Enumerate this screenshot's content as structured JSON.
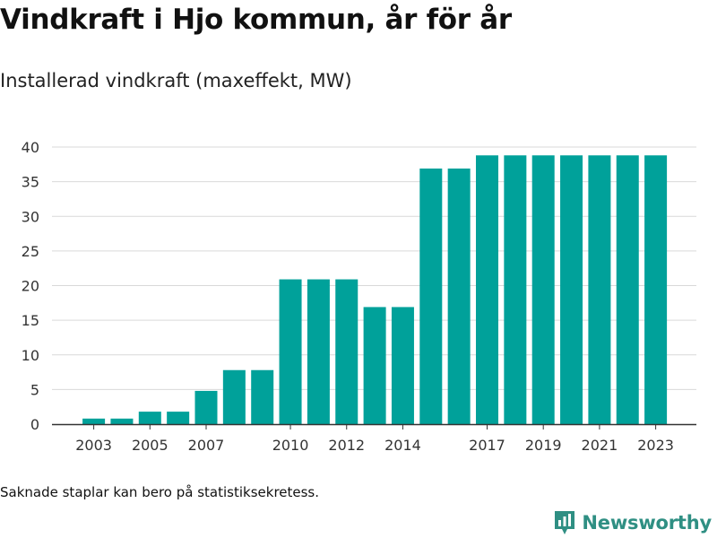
{
  "title": "Vindkraft i Hjo kommun, år för år",
  "subtitle": "Installerad vindkraft (maxeffekt, MW)",
  "note": "Saknade staplar kan bero på statistiksekretess.",
  "brand": {
    "name": "Newsworthy",
    "icon": "newsworthy-logo-icon",
    "color": "#2f8f83"
  },
  "colors": {
    "bar": "#00a19a",
    "grid": "#d9d9d9",
    "axis": "#333333"
  },
  "chart_data": {
    "type": "bar",
    "title": "Vindkraft i Hjo kommun, år för år",
    "subtitle": "Installerad vindkraft (maxeffekt, MW)",
    "xlabel": "",
    "ylabel": "",
    "categories": [
      "2003",
      "2004",
      "2005",
      "2006",
      "2007",
      "2008",
      "2009",
      "2010",
      "2011",
      "2012",
      "2013",
      "2014",
      "2015",
      "2016",
      "2017",
      "2018",
      "2019",
      "2020",
      "2021",
      "2022",
      "2023"
    ],
    "values": [
      0.8,
      0.8,
      1.8,
      1.8,
      4.8,
      7.8,
      7.8,
      20.9,
      20.9,
      20.9,
      16.9,
      16.9,
      36.9,
      36.9,
      38.8,
      38.8,
      38.8,
      38.8,
      38.8,
      38.8,
      38.8
    ],
    "x_tick_labels": [
      "2003",
      "2005",
      "2007",
      "2010",
      "2012",
      "2014",
      "2017",
      "2019",
      "2021",
      "2023"
    ],
    "ylim": [
      0,
      40
    ],
    "y_ticks": [
      0,
      5,
      10,
      15,
      20,
      25,
      30,
      35,
      40
    ],
    "grid": true,
    "legend": "none"
  }
}
